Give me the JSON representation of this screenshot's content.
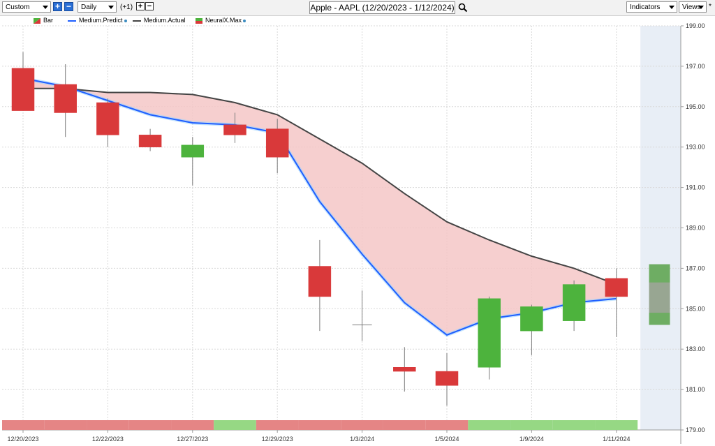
{
  "toolbar": {
    "layout_select": "Custom",
    "period_select": "Daily",
    "offset_label": "(+1)",
    "title": "Apple - AAPL (12/20/2023 - 1/12/2024)",
    "indicators_label": "Indicators",
    "views_label": "Views",
    "star": "*"
  },
  "legend": [
    {
      "label": "Bar",
      "color": "#d9393a"
    },
    {
      "label": "Medium.Predict",
      "color": "#1f5fff"
    },
    {
      "label": "Medium.Actual",
      "color": "#444444"
    },
    {
      "label": "NeuralX.Max",
      "color": "#4db33d"
    }
  ],
  "colors": {
    "up": "#4db33d",
    "down": "#d9393a",
    "predict": "#1f5fff",
    "actual": "#444444",
    "band": "#f4c7c7",
    "forecast_bg": "#e8eef6"
  },
  "chart_data": {
    "type": "candlestick",
    "ylim": [
      179,
      199
    ],
    "y_ticks": [
      "199.00",
      "197.00",
      "195.00",
      "193.00",
      "191.00",
      "189.00",
      "187.00",
      "185.00",
      "183.00",
      "181.00",
      "179.00"
    ],
    "x_tick_labels": [
      "12/20/2023",
      "12/22/2023",
      "12/27/2023",
      "12/29/2023",
      "1/3/2024",
      "1/5/2024",
      "1/9/2024",
      "1/11/2024"
    ],
    "candles": [
      {
        "date": "12/20/2023",
        "open": 196.9,
        "high": 197.7,
        "low": 194.8,
        "close": 194.8
      },
      {
        "date": "12/21/2023",
        "open": 196.1,
        "high": 197.1,
        "low": 193.5,
        "close": 194.7
      },
      {
        "date": "12/22/2023",
        "open": 195.2,
        "high": 195.4,
        "low": 193.0,
        "close": 193.6
      },
      {
        "date": "12/26/2023",
        "open": 193.6,
        "high": 193.9,
        "low": 192.8,
        "close": 193.0
      },
      {
        "date": "12/27/2023",
        "open": 192.5,
        "high": 193.5,
        "low": 191.1,
        "close": 193.1
      },
      {
        "date": "12/28/2023",
        "open": 194.1,
        "high": 194.7,
        "low": 193.2,
        "close": 193.6
      },
      {
        "date": "12/29/2023",
        "open": 193.9,
        "high": 194.4,
        "low": 191.7,
        "close": 192.5
      },
      {
        "date": "1/2/2024",
        "open": 187.1,
        "high": 188.4,
        "low": 183.9,
        "close": 185.6
      },
      {
        "date": "1/3/2024",
        "open": 184.2,
        "high": 185.9,
        "low": 183.4,
        "close": 184.2
      },
      {
        "date": "1/4/2024",
        "open": 182.1,
        "high": 183.1,
        "low": 180.9,
        "close": 181.9
      },
      {
        "date": "1/5/2024",
        "open": 181.9,
        "high": 182.8,
        "low": 180.2,
        "close": 181.2
      },
      {
        "date": "1/8/2024",
        "open": 182.1,
        "high": 185.6,
        "low": 181.5,
        "close": 185.5
      },
      {
        "date": "1/9/2024",
        "open": 183.9,
        "high": 185.2,
        "low": 182.7,
        "close": 185.1
      },
      {
        "date": "1/10/2024",
        "open": 184.4,
        "high": 186.4,
        "low": 183.9,
        "close": 186.2
      },
      {
        "date": "1/11/2024",
        "open": 186.5,
        "high": 187.0,
        "low": 183.6,
        "close": 185.6
      }
    ],
    "medium_predict": [
      196.4,
      196.0,
      195.3,
      194.6,
      194.2,
      194.1,
      193.7,
      190.3,
      187.7,
      185.3,
      183.7,
      184.5,
      184.8,
      185.3,
      185.5
    ],
    "medium_actual": [
      195.9,
      195.9,
      195.7,
      195.7,
      195.6,
      195.2,
      194.6,
      193.4,
      192.2,
      190.7,
      189.3,
      188.4,
      187.6,
      187.0,
      186.2
    ],
    "forecast_bar": {
      "open": 187.2,
      "close": 184.2
    },
    "signal_strip": [
      "down",
      "down",
      "down",
      "down",
      "down",
      "up",
      "down",
      "down",
      "down",
      "down",
      "down",
      "up",
      "up",
      "up",
      "up"
    ]
  }
}
